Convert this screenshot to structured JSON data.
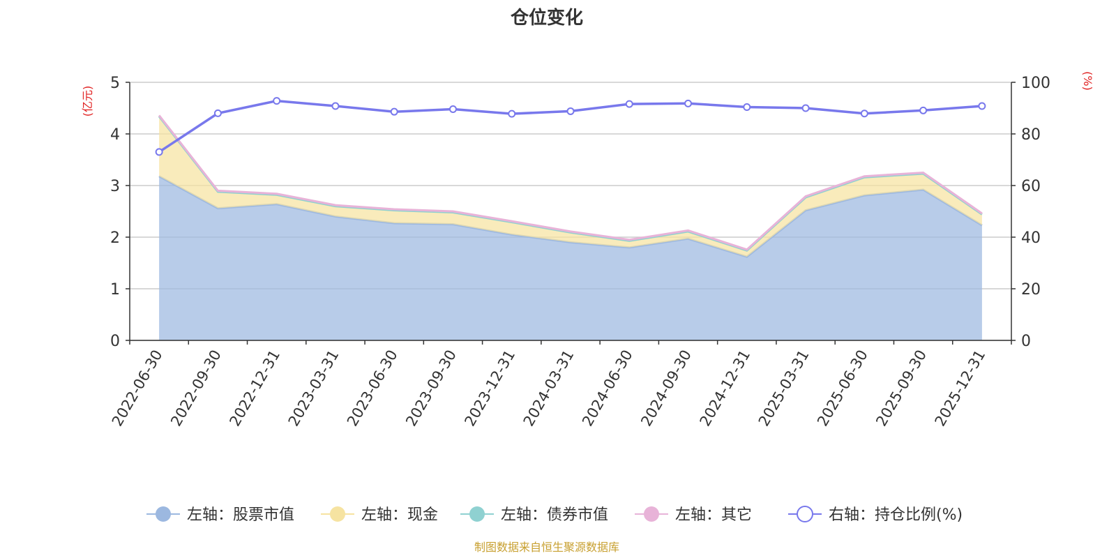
{
  "chart_data": {
    "type": "area",
    "title": "仓位变化",
    "categories": [
      "2022-06-30",
      "2022-09-30",
      "2022-12-31",
      "2023-03-31",
      "2023-06-30",
      "2023-09-30",
      "2023-12-31",
      "2024-03-31",
      "2024-06-30",
      "2024-09-30",
      "2024-12-31",
      "2025-03-31",
      "2025-06-30",
      "2025-09-30",
      "2025-12-31"
    ],
    "left_axis": {
      "label": "(亿元)",
      "min": 0,
      "max": 5,
      "ticks": [
        0,
        1,
        2,
        3,
        4,
        5
      ]
    },
    "right_axis": {
      "label": "(%)",
      "min": 0,
      "max": 100,
      "ticks": [
        0,
        20,
        40,
        60,
        80,
        100
      ]
    },
    "series": [
      {
        "name": "左轴：股票市值",
        "axis": "left",
        "kind": "area",
        "color": "#9cb8e0",
        "values": [
          3.18,
          2.56,
          2.64,
          2.4,
          2.27,
          2.25,
          2.05,
          1.9,
          1.8,
          1.97,
          1.62,
          2.52,
          2.81,
          2.92,
          2.23
        ]
      },
      {
        "name": "左轴：现金",
        "axis": "left",
        "kind": "area",
        "color": "#f6e3a1",
        "values": [
          1.16,
          0.32,
          0.18,
          0.2,
          0.25,
          0.23,
          0.24,
          0.19,
          0.13,
          0.14,
          0.12,
          0.25,
          0.35,
          0.31,
          0.21
        ]
      },
      {
        "name": "左轴：债券市值",
        "axis": "left",
        "kind": "area",
        "color": "#8fd1d1",
        "values": [
          0,
          0,
          0,
          0,
          0,
          0,
          0,
          0,
          0,
          0,
          0,
          0,
          0,
          0,
          0
        ]
      },
      {
        "name": "左轴：其它",
        "axis": "left",
        "kind": "area",
        "color": "#e8b3d8",
        "values": [
          0.02,
          0.02,
          0.02,
          0.02,
          0.02,
          0.02,
          0.02,
          0.02,
          0.02,
          0.02,
          0.02,
          0.02,
          0.02,
          0.02,
          0.02
        ]
      },
      {
        "name": "右轴：持仓比例(%)",
        "axis": "right",
        "kind": "line",
        "color": "#7878ec",
        "values": [
          73.0,
          88.0,
          92.8,
          90.8,
          88.6,
          89.6,
          87.8,
          88.8,
          91.6,
          91.8,
          90.4,
          90.0,
          87.9,
          89.1,
          90.8
        ]
      }
    ],
    "grid": true,
    "legend_position": "bottom",
    "source": "制图数据来自恒生聚源数据库"
  }
}
